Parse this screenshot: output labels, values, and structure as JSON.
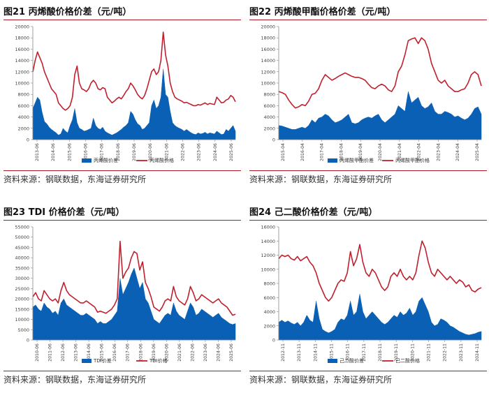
{
  "source_label": "资料来源：钢联数据，东海证券研究所",
  "colors": {
    "price": "#c0202e",
    "spread": "#0a60b4",
    "rule": "#b0182a"
  },
  "chart_data": [
    {
      "type": "area",
      "title": "图21  丙烯酸价格价差（元/吨）",
      "ylim": [
        0,
        20000
      ],
      "y_ticks": [
        "0",
        "2000",
        "4000",
        "6000",
        "8000",
        "10000",
        "12000",
        "14000",
        "16000",
        "18000",
        "20000"
      ],
      "x_ticks": [
        "2013-06",
        "2014-06",
        "2015-06",
        "2016-06",
        "2017-06",
        "2018-06",
        "2019-06",
        "2020-06",
        "2021-06",
        "2022-06",
        "2023-06",
        "2024-06",
        "2025-06"
      ],
      "legend_position": "bottom",
      "series": [
        {
          "name": "丙烯酸价差",
          "kind": "area",
          "values": [
            5500,
            6500,
            7500,
            7000,
            4800,
            3200,
            2800,
            2200,
            1800,
            1500,
            1200,
            800,
            1000,
            2000,
            1500,
            1200,
            2500,
            3500,
            5500,
            3000,
            2000,
            1800,
            1500,
            1600,
            1800,
            2000,
            3800,
            2500,
            2000,
            1800,
            2200,
            1500,
            1200,
            1000,
            800,
            1000,
            1200,
            1500,
            1800,
            2200,
            2500,
            3000,
            5000,
            4500,
            3500,
            2800,
            2500,
            1800,
            2000,
            2500,
            3000,
            6000,
            7000,
            5500,
            6000,
            7500,
            12500,
            8000,
            7500,
            5000,
            3000,
            2500,
            2200,
            2000,
            1800,
            1500,
            1800,
            1500,
            1200,
            1000,
            900,
            1200,
            1000,
            1100,
            1300,
            1000,
            1200,
            1100,
            1000,
            1500,
            1200,
            900,
            1000,
            1800,
            1500,
            2000,
            2500,
            1500
          ]
        },
        {
          "name": "丙烯酸价格",
          "kind": "line",
          "values": [
            12000,
            14000,
            15500,
            14500,
            13500,
            12000,
            11000,
            10000,
            9000,
            8500,
            8000,
            6500,
            6000,
            5500,
            5200,
            5500,
            6000,
            7500,
            11500,
            13000,
            10000,
            9000,
            8800,
            8500,
            9000,
            10000,
            10500,
            10000,
            9000,
            8800,
            9200,
            9000,
            7500,
            7000,
            6500,
            6800,
            7200,
            7500,
            7200,
            7800,
            8500,
            9000,
            10000,
            9500,
            8800,
            8000,
            7500,
            7200,
            7800,
            9000,
            10500,
            12000,
            12500,
            11500,
            12000,
            14000,
            19000,
            15000,
            13000,
            10000,
            8500,
            7500,
            7200,
            7000,
            6800,
            6500,
            6600,
            6400,
            6200,
            6000,
            6000,
            6200,
            6100,
            6300,
            6500,
            6200,
            6400,
            6300,
            6200,
            7500,
            7000,
            6500,
            6600,
            7000,
            7200,
            7800,
            7500,
            6700
          ]
        }
      ]
    },
    {
      "type": "area",
      "title": "图22  丙烯酸甲酯价格价差（元/吨）",
      "ylim": [
        0,
        20000
      ],
      "y_ticks": [
        "0",
        "2000",
        "4000",
        "6000",
        "8000",
        "10000",
        "12000",
        "14000",
        "16000",
        "18000",
        "20000"
      ],
      "x_ticks": [
        "2015-04",
        "2016-04",
        "2017-04",
        "2018-04",
        "2019-04",
        "2020-04",
        "2021-04",
        "2022-04",
        "2023-04",
        "2024-04",
        "2025-04"
      ],
      "legend_position": "bottom",
      "series": [
        {
          "name": "丙烯酸甲酯价差",
          "kind": "area",
          "values": [
            2500,
            2400,
            2200,
            2000,
            1800,
            1800,
            2000,
            2200,
            2000,
            2500,
            3500,
            3000,
            3800,
            4000,
            4500,
            4200,
            3500,
            3000,
            3200,
            3500,
            4000,
            4500,
            3000,
            2800,
            3000,
            3500,
            3800,
            4000,
            3800,
            4200,
            4500,
            3500,
            3000,
            3500,
            4000,
            4500,
            6000,
            5500,
            5000,
            8500,
            6500,
            7000,
            7500,
            6000,
            5500,
            5800,
            6500,
            5000,
            4500,
            4500,
            5000,
            4800,
            4500,
            4000,
            4200,
            3800,
            3500,
            3800,
            4500,
            5500,
            5800,
            4500
          ]
        },
        {
          "name": "丙烯酸甲酯价格",
          "kind": "line",
          "values": [
            8500,
            8300,
            8000,
            7000,
            6200,
            5600,
            5800,
            6200,
            6000,
            6800,
            8000,
            8200,
            9000,
            10500,
            11500,
            11000,
            10500,
            10800,
            11200,
            11500,
            11800,
            11500,
            11200,
            11000,
            11000,
            10800,
            10500,
            9800,
            9200,
            9000,
            9500,
            9800,
            9500,
            8800,
            8500,
            9500,
            12000,
            13000,
            15000,
            17500,
            17800,
            18000,
            17000,
            18000,
            17500,
            16000,
            13500,
            12000,
            10500,
            10000,
            10500,
            9500,
            9000,
            8500,
            8500,
            8800,
            9000,
            10000,
            11500,
            12000,
            11500,
            9500
          ]
        }
      ]
    },
    {
      "type": "area",
      "title": "图23  TDI 价格价差（元/吨）",
      "ylim": [
        0,
        55000
      ],
      "y_ticks": [
        "0",
        "5000",
        "10000",
        "15000",
        "20000",
        "25000",
        "30000",
        "35000",
        "40000",
        "45000",
        "50000",
        "55000"
      ],
      "x_ticks": [
        "2010-06",
        "2011-06",
        "2012-06",
        "2013-06",
        "2014-06",
        "2015-06",
        "2016-06",
        "2017-06",
        "2018-06",
        "2019-06",
        "2020-06",
        "2021-06",
        "2022-06",
        "2023-06",
        "2024-06",
        "2025-06"
      ],
      "legend_position": "bottom",
      "series": [
        {
          "name": "TDI价差",
          "kind": "area",
          "values": [
            16000,
            17000,
            15000,
            14000,
            18000,
            16000,
            15000,
            13000,
            14000,
            12000,
            18000,
            20000,
            17000,
            16000,
            15000,
            14000,
            13000,
            12000,
            12000,
            13000,
            12000,
            11000,
            10000,
            8000,
            9000,
            8000,
            8000,
            9000,
            10000,
            12000,
            14000,
            30000,
            22000,
            25000,
            28000,
            32000,
            35000,
            30000,
            25000,
            28000,
            20000,
            18000,
            14000,
            10000,
            9000,
            8000,
            10000,
            12000,
            13000,
            12000,
            18000,
            14000,
            12000,
            11000,
            10000,
            14000,
            18000,
            16000,
            12000,
            13000,
            15000,
            14000,
            13000,
            12000,
            11000,
            12000,
            13000,
            11000,
            10000,
            9000,
            8000,
            7500,
            8000
          ]
        },
        {
          "name": "TDI价格",
          "kind": "line",
          "values": [
            21000,
            23000,
            20000,
            19000,
            24000,
            22000,
            20000,
            19000,
            20000,
            18000,
            24000,
            28000,
            24000,
            22000,
            21000,
            20000,
            19000,
            18000,
            18000,
            19000,
            18000,
            17000,
            16000,
            13500,
            14000,
            13500,
            13000,
            14000,
            15000,
            17000,
            20000,
            48000,
            30000,
            33000,
            35000,
            40000,
            43000,
            42000,
            34000,
            38000,
            28000,
            25000,
            21000,
            16000,
            15000,
            14000,
            16000,
            19000,
            20000,
            19000,
            26000,
            21000,
            19000,
            18000,
            17000,
            20000,
            26000,
            23000,
            19000,
            20000,
            22000,
            21000,
            20000,
            19000,
            18000,
            19000,
            20000,
            18000,
            17000,
            16000,
            14000,
            12000,
            12500
          ]
        }
      ]
    },
    {
      "type": "area",
      "title": "图24  己二酸价格价差（元/吨）",
      "ylim": [
        0,
        16000
      ],
      "y_ticks": [
        "0",
        "2000",
        "4000",
        "6000",
        "8000",
        "10000",
        "12000",
        "14000",
        "16000"
      ],
      "x_ticks": [
        "2012-11",
        "2013-11",
        "2014-11",
        "2015-11",
        "2016-11",
        "2017-11",
        "2018-11",
        "2019-11",
        "2020-11",
        "2021-11",
        "2022-11",
        "2023-11",
        "2024-11"
      ],
      "legend_position": "bottom",
      "series": [
        {
          "name": "己二酸价差",
          "kind": "area",
          "values": [
            2500,
            2800,
            2500,
            2700,
            2400,
            2200,
            2500,
            2000,
            2500,
            3500,
            2800,
            2500,
            5500,
            3000,
            1500,
            1200,
            1000,
            1200,
            1500,
            2500,
            3000,
            2800,
            3500,
            5500,
            3500,
            4000,
            6500,
            4000,
            3000,
            3500,
            4000,
            3500,
            3000,
            2500,
            2200,
            2500,
            3000,
            3500,
            3200,
            4000,
            3500,
            3800,
            4500,
            3500,
            4000,
            5500,
            6000,
            5000,
            4000,
            2500,
            2000,
            2200,
            3000,
            2800,
            2500,
            2000,
            1800,
            1500,
            1200,
            1000,
            800,
            700,
            800,
            900,
            1100,
            1200
          ]
        },
        {
          "name": "己二酸价格",
          "kind": "line",
          "values": [
            11500,
            12000,
            11800,
            12000,
            11500,
            11300,
            11800,
            11200,
            11500,
            11800,
            11000,
            10500,
            9500,
            8000,
            7000,
            6000,
            5500,
            6000,
            7000,
            8000,
            8500,
            8300,
            9500,
            12500,
            10500,
            11500,
            13500,
            11000,
            9500,
            9000,
            10000,
            9500,
            8500,
            7500,
            7000,
            7500,
            9000,
            9500,
            9000,
            10000,
            9000,
            8500,
            9000,
            8500,
            9500,
            12000,
            14000,
            13000,
            11000,
            9500,
            9000,
            10000,
            9500,
            9000,
            8500,
            9000,
            8500,
            8000,
            8500,
            8200,
            7500,
            7800,
            7000,
            6800,
            7200,
            7400
          ]
        }
      ]
    }
  ]
}
